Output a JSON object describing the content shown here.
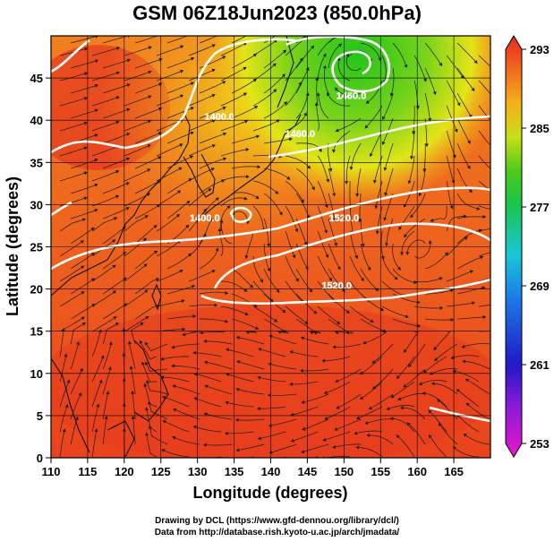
{
  "chart_data": {
    "type": "heatmap",
    "title": "GSM 06Z18Jun2023 (850.0hPa)",
    "xlabel": "Longitude (degrees)",
    "ylabel": "Latitude  (degrees)",
    "xlim": [
      110,
      170
    ],
    "ylim": [
      0,
      50
    ],
    "x_ticks": [
      110,
      115,
      120,
      125,
      130,
      135,
      140,
      145,
      150,
      155,
      160,
      165
    ],
    "y_ticks": [
      0,
      5,
      10,
      15,
      20,
      25,
      30,
      35,
      40,
      45
    ],
    "grid": true,
    "colorbar": {
      "placement": "right",
      "min": 253,
      "max": 293,
      "ticks": [
        253,
        261,
        269,
        277,
        285,
        293
      ]
    },
    "contours": [
      {
        "label": "1400.0",
        "lon": 133,
        "lat": 40
      },
      {
        "label": "1460.0",
        "lon": 144,
        "lat": 38
      },
      {
        "label": "1460.0",
        "lon": 151,
        "lat": 42.5
      },
      {
        "label": "1400.0",
        "lon": 131,
        "lat": 28
      },
      {
        "label": "1520.0",
        "lon": 150,
        "lat": 28
      },
      {
        "label": "1520.0",
        "lon": 149,
        "lat": 20
      }
    ],
    "colors": {
      "warm": "#e8401f",
      "mid": "#f79a1c",
      "cool": "#3ec61b",
      "contour": "#ffffff",
      "vector": "#1a1a1a"
    }
  },
  "credits": {
    "line1": "Drawing by DCL (https://www.gfd-dennou.org/library/dcl/)",
    "line2": "Data from http://database.rish.kyoto-u.ac.jp/arch/jmadata/"
  }
}
